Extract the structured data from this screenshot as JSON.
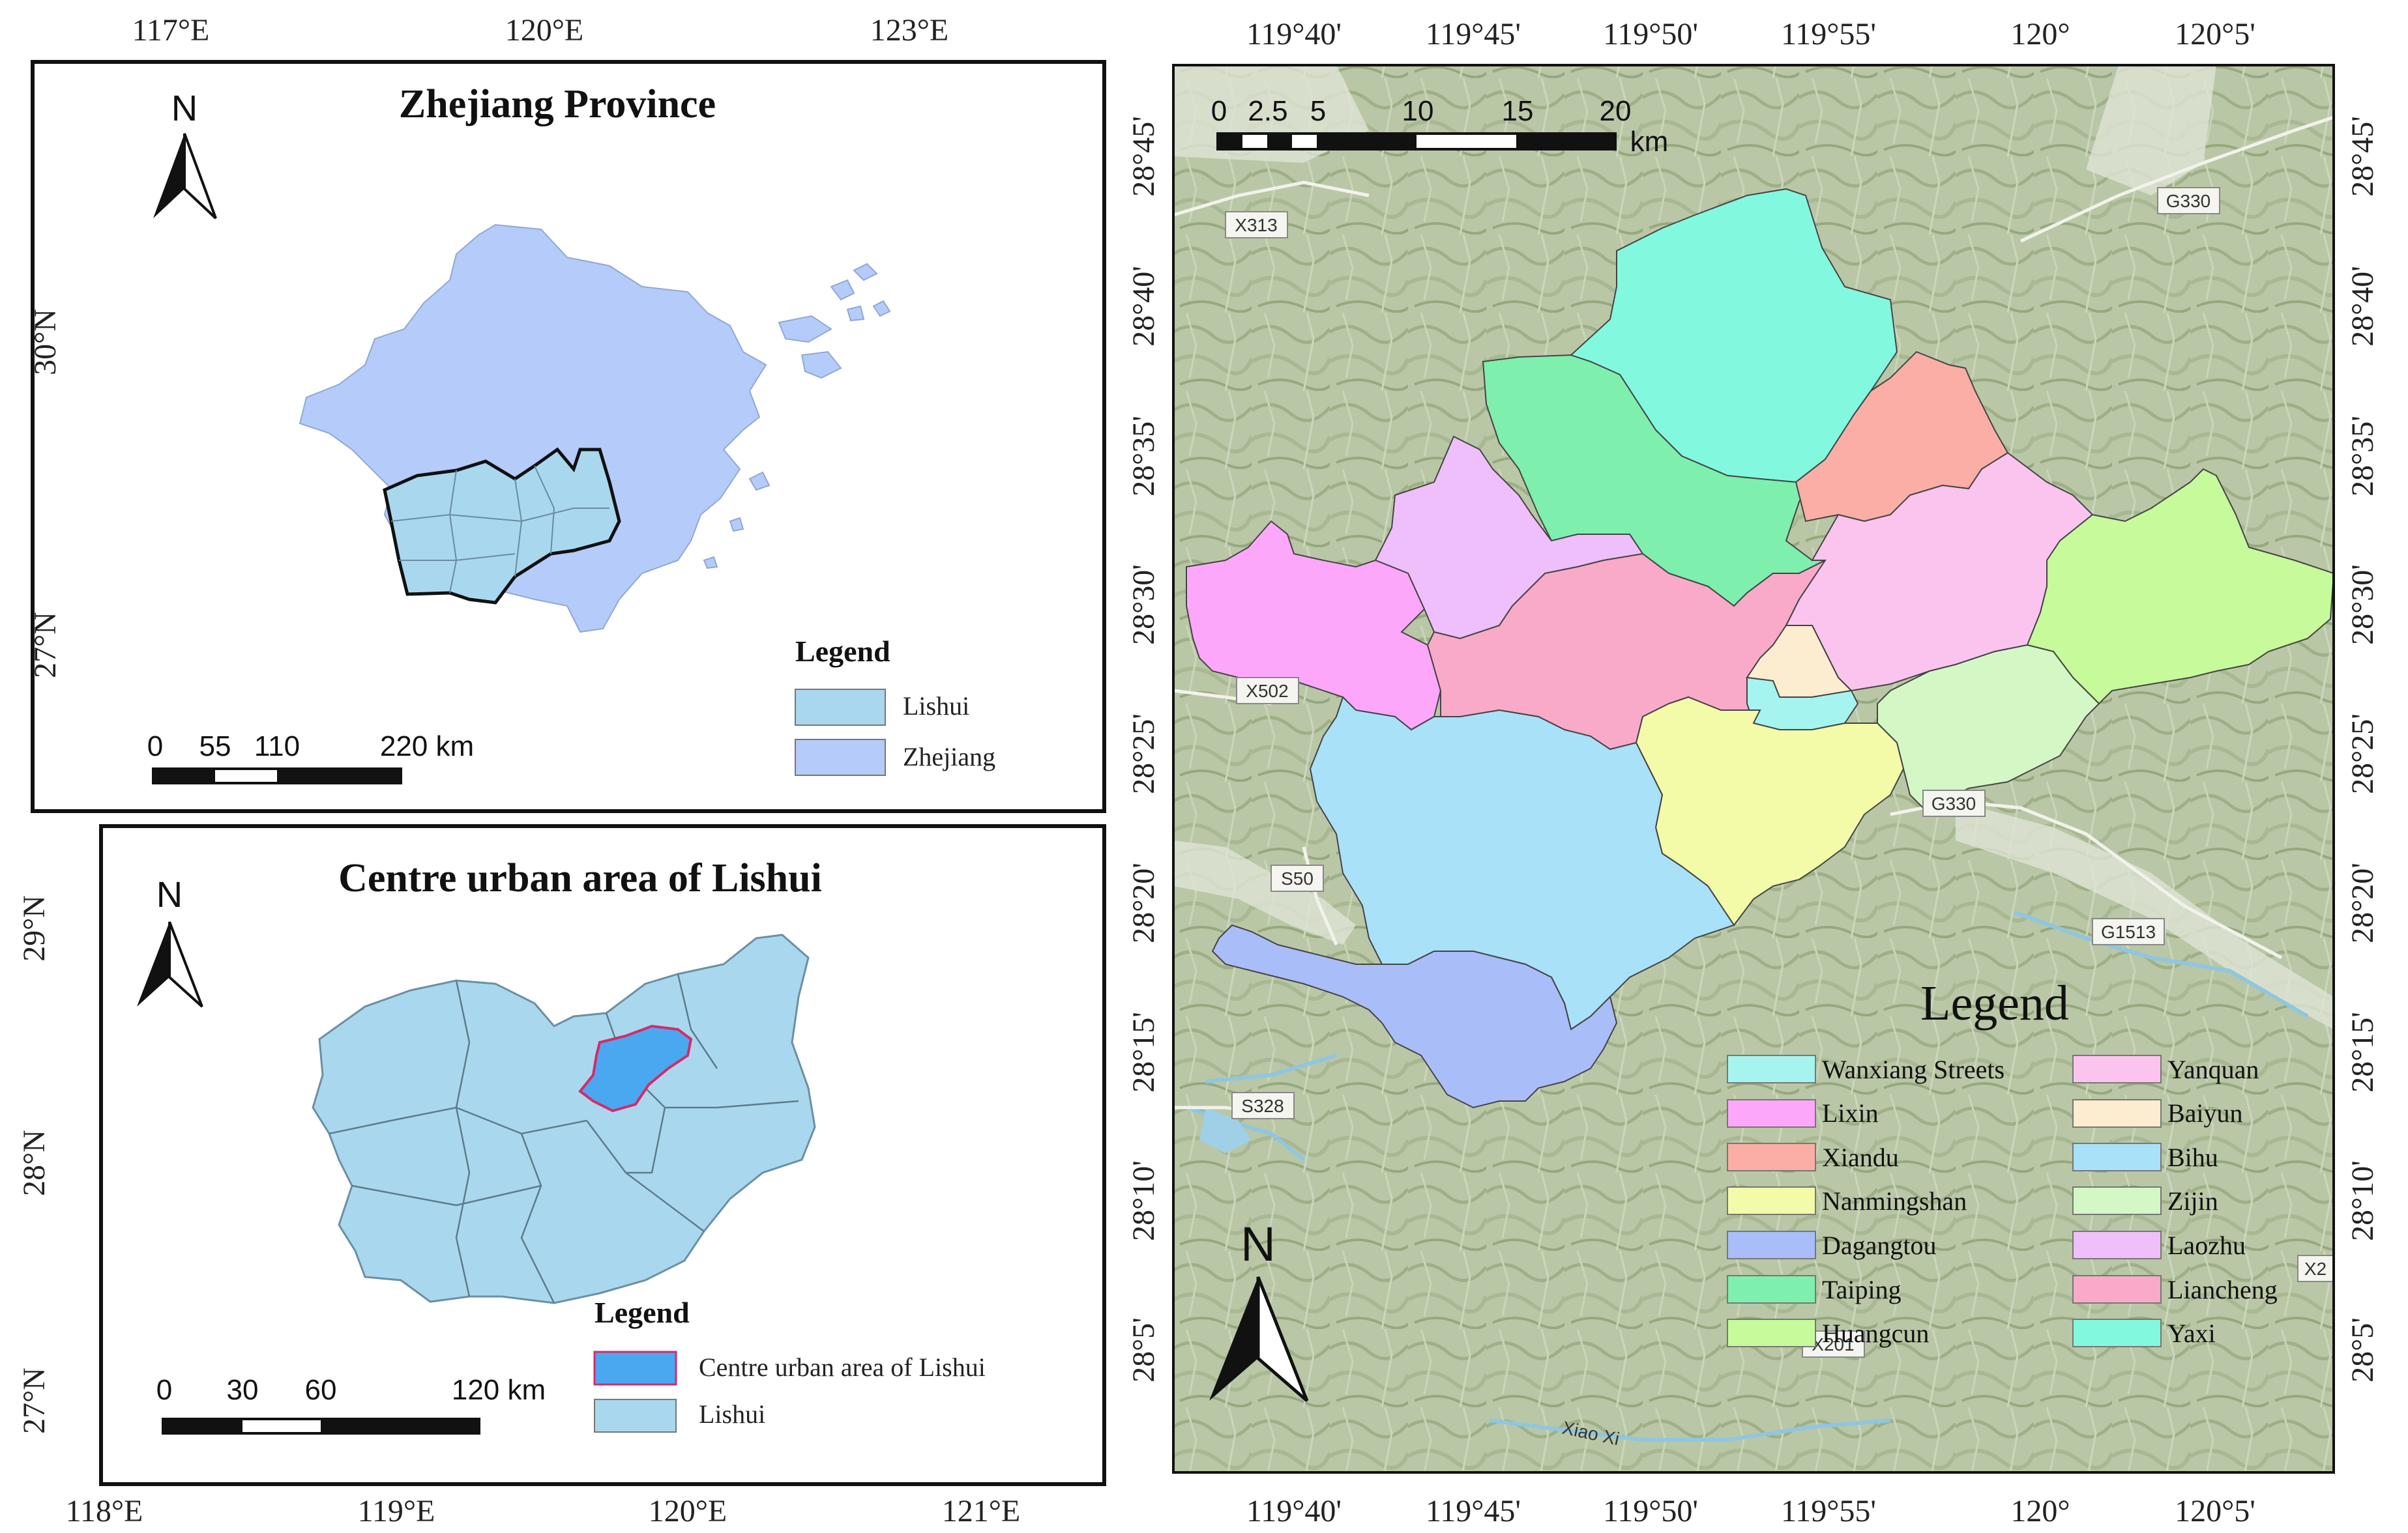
{
  "panel_zhejiang": {
    "title": "Zhejiang Province",
    "north_label": "N",
    "lon_ticks": [
      "117°E",
      "120°E",
      "123°E"
    ],
    "lat_ticks": [
      "30°N",
      "27°N"
    ],
    "legend": {
      "title": "Legend",
      "items": [
        {
          "label": "Lishui",
          "color": "#a9d8ee"
        },
        {
          "label": "Zhejiang",
          "color": "#b5cbfa"
        }
      ]
    },
    "scale_bar": {
      "labels": [
        "0",
        "55",
        "110",
        "220 km"
      ]
    }
  },
  "panel_lishui": {
    "title": "Centre urban area of Lishui",
    "north_label": "N",
    "lon_ticks": [
      "118°E",
      "119°E",
      "120°E",
      "121°E"
    ],
    "lat_ticks": [
      "29°N",
      "28°N",
      "27°N"
    ],
    "legend": {
      "title": "Legend",
      "items": [
        {
          "label": "Centre urban area of Lishui",
          "color": "#4aa8f0"
        },
        {
          "label": "Lishui",
          "color": "#a9d8ee"
        }
      ]
    },
    "scale_bar": {
      "labels": [
        "0",
        "30",
        "60",
        "120 km"
      ]
    }
  },
  "panel_detail": {
    "north_label": "N",
    "lon_ticks": [
      "119°40'",
      "119°45'",
      "119°50'",
      "119°55'",
      "120°",
      "120°5'"
    ],
    "lat_ticks": [
      "28°45'",
      "28°40'",
      "28°35'",
      "28°30'",
      "28°25'",
      "28°20'",
      "28°15'",
      "28°10'",
      "28°5'"
    ],
    "scale_bar": {
      "labels": [
        "0",
        "2.5",
        "5",
        "10",
        "15",
        "20"
      ],
      "unit": "km"
    },
    "road_labels": [
      "X313",
      "G330",
      "X502",
      "G330",
      "S50",
      "G1513",
      "S328",
      "X201",
      "X2"
    ],
    "river_label": "Xiao Xi",
    "legend": {
      "title": "Legend",
      "items": [
        {
          "label": "Wanxiang Streets",
          "color": "#a6f4ef"
        },
        {
          "label": "Lixin",
          "color": "#fda7fb"
        },
        {
          "label": "Xiandu",
          "color": "#faaea5"
        },
        {
          "label": "Nanmingshan",
          "color": "#f3fba8"
        },
        {
          "label": "Dagangtou",
          "color": "#a9bdf9"
        },
        {
          "label": "Taiping",
          "color": "#7eefad"
        },
        {
          "label": "Huangcun",
          "color": "#c6fa9a"
        },
        {
          "label": "Yanquan",
          "color": "#fac4ef"
        },
        {
          "label": "Baiyun",
          "color": "#fcedd0"
        },
        {
          "label": "Bihu",
          "color": "#a9e1f9"
        },
        {
          "label": "Zijin",
          "color": "#d3f8c6"
        },
        {
          "label": "Laozhu",
          "color": "#eebffa"
        },
        {
          "label": "Liancheng",
          "color": "#f9aac8"
        },
        {
          "label": "Yaxi",
          "color": "#82f8df"
        }
      ]
    }
  }
}
